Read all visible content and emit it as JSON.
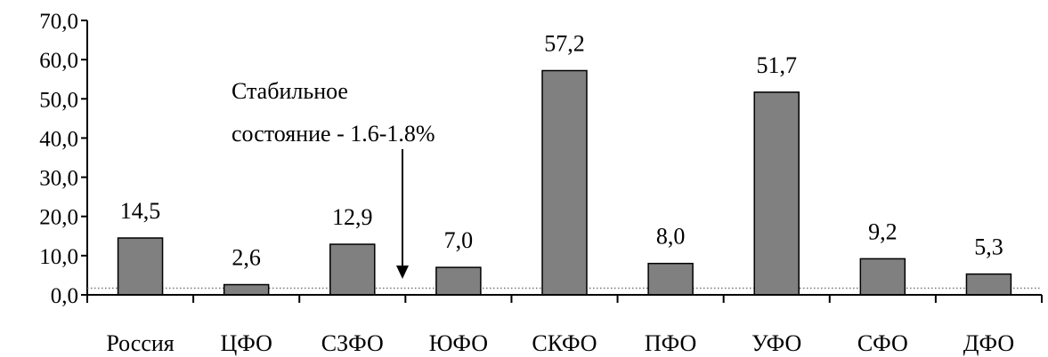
{
  "chart_data": {
    "type": "bar",
    "categories": [
      "Россия",
      "ЦФО",
      "СЗФО",
      "ЮФО",
      "СКФО",
      "ПФО",
      "УФО",
      "СФО",
      "ДФО"
    ],
    "values": [
      14.5,
      2.6,
      12.9,
      7.0,
      57.2,
      8.0,
      51.7,
      9.2,
      5.3
    ],
    "value_labels": [
      "14,5",
      "2,6",
      "12,9",
      "7,0",
      "57,2",
      "8,0",
      "51,7",
      "9,2",
      "5,3"
    ],
    "ylim": [
      0,
      70
    ],
    "yticks": [
      0,
      10,
      20,
      30,
      40,
      50,
      60,
      70
    ],
    "ytick_labels": [
      "0,0",
      "10,0",
      "20,0",
      "30,0",
      "40,0",
      "50,0",
      "60,0",
      "70,0"
    ],
    "title": "",
    "xlabel": "",
    "ylabel": "",
    "grid": false,
    "bar_color": "#808080",
    "bar_edge_color": "#000000",
    "reference_line": {
      "value": 1.7,
      "style": "dotted"
    },
    "annotation": {
      "lines": [
        "Стабильное",
        "состояние - 1.6-1.8%"
      ],
      "arrow": "down"
    }
  }
}
